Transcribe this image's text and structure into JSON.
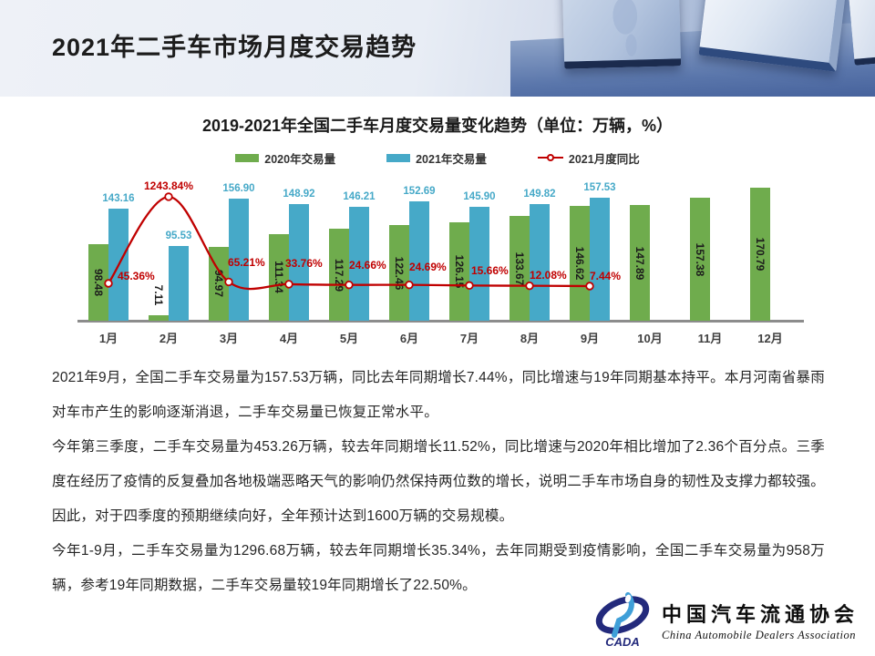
{
  "slide": {
    "title": "2021年二手车市场月度交易趋势"
  },
  "chart_data": {
    "type": "bar+line",
    "title": "2019-2021年全国二手车月度交易量变化趋势（单位：万辆，%）",
    "categories": [
      "1月",
      "2月",
      "3月",
      "4月",
      "5月",
      "6月",
      "7月",
      "8月",
      "9月",
      "10月",
      "11月",
      "12月"
    ],
    "series": [
      {
        "name": "2020年交易量",
        "type": "bar",
        "unit": "万辆",
        "color": "#6FAC4D",
        "values": [
          98.48,
          7.11,
          94.97,
          111.34,
          117.29,
          122.46,
          126.15,
          133.67,
          146.62,
          147.89,
          157.38,
          170.79
        ]
      },
      {
        "name": "2021年交易量",
        "type": "bar",
        "unit": "万辆",
        "color": "#46A9C8",
        "values": [
          143.16,
          95.53,
          156.9,
          148.92,
          146.21,
          152.69,
          145.9,
          149.82,
          157.53,
          null,
          null,
          null
        ]
      },
      {
        "name": "2021月度同比",
        "type": "line",
        "unit": "%",
        "color": "#C00000",
        "values": [
          45.36,
          1243.84,
          65.21,
          33.76,
          24.66,
          24.69,
          15.66,
          12.08,
          7.44,
          null,
          null,
          null
        ]
      }
    ],
    "legend_position": "top",
    "grid": false,
    "y_axis_visible": false,
    "value_labels": true
  },
  "commentary": {
    "p1": "2021年9月，全国二手车交易量为157.53万辆，同比去年同期增长7.44%，同比增速与19年同期基本持平。本月河南省暴雨对车市产生的影响逐渐消退，二手车交易量已恢复正常水平。",
    "p2": "今年第三季度，二手车交易量为453.26万辆，较去年同期增长11.52%，同比增速与2020年相比增加了2.36个百分点。三季度在经历了疫情的反复叠加各地极端恶略天气的影响仍然保持两位数的增长，说明二手车市场自身的韧性及支撑力都较强。因此，对于四季度的预期继续向好，全年预计达到1600万辆的交易规模。",
    "p3": "今年1-9月，二手车交易量为1296.68万辆，较去年同期增长35.34%，去年同期受到疫情影响，全国二手车交易量为958万辆，参考19年同期数据，二手车交易量较19年同期增长了22.50%。"
  },
  "logo": {
    "acronym": "CADA",
    "cn_name": "中国汽车流通协会",
    "en_name": "China Automobile Dealers Association"
  }
}
